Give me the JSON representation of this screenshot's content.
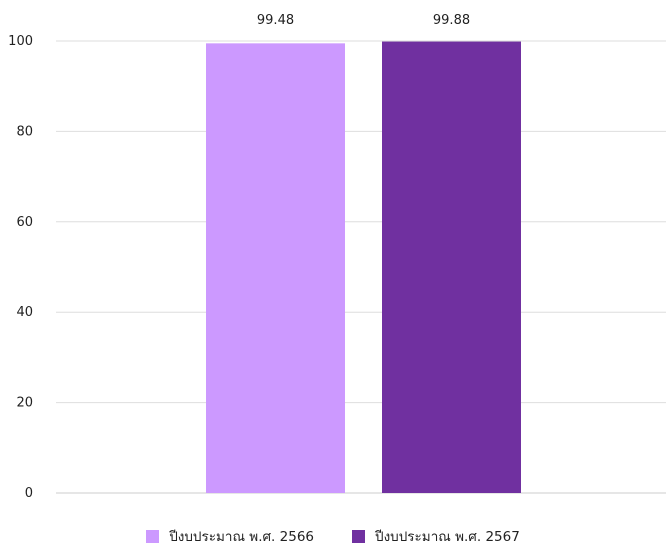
{
  "chart_data": {
    "type": "bar",
    "categories": [
      ""
    ],
    "series": [
      {
        "name": "ปีงบประมาณ พ.ศ. 2566",
        "values": [
          99.48
        ],
        "color": "#cc99ff"
      },
      {
        "name": "ปีงบประมาณ พ.ศ. 2567",
        "values": [
          99.88
        ],
        "color": "#7030a0"
      }
    ],
    "data_labels": [
      "99.48",
      "99.88"
    ],
    "title": "",
    "xlabel": "",
    "ylabel": "",
    "ylim": [
      0,
      100
    ],
    "yticks": [
      0,
      20,
      40,
      60,
      80,
      100
    ],
    "ytick_labels": [
      "0",
      "20",
      "40",
      "60",
      "80",
      "100"
    ],
    "grid": true,
    "legend_position": "bottom"
  }
}
